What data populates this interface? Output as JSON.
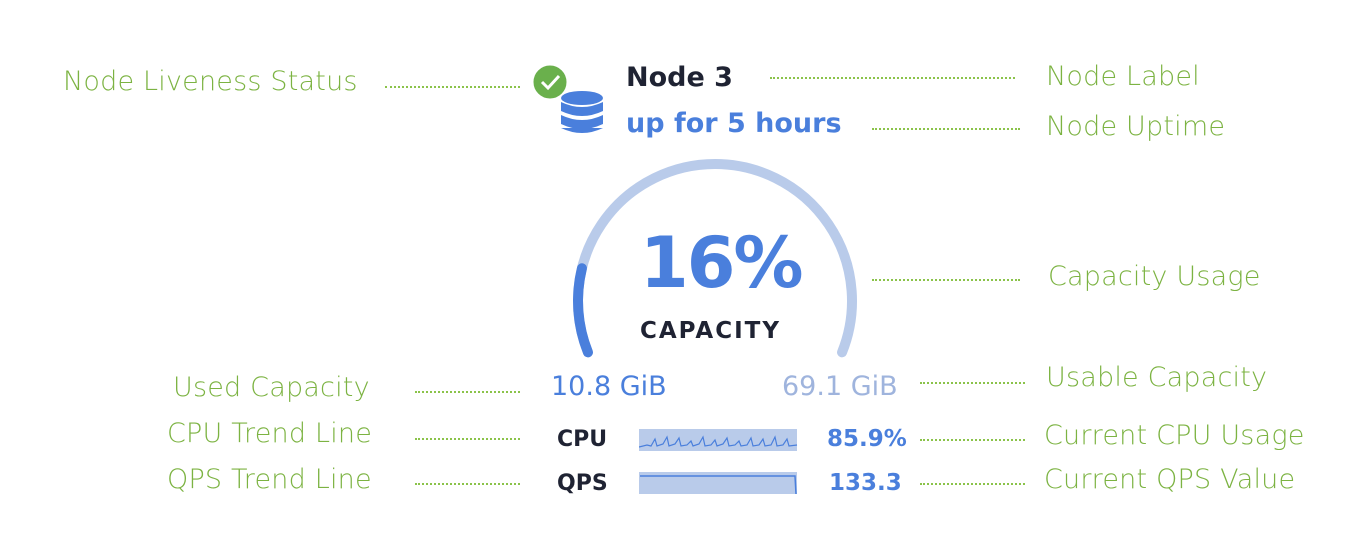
{
  "node": {
    "label": "Node 3",
    "uptime": "up for 5 hours",
    "liveness_icon": "check-circle-icon",
    "node_icon": "database-icon",
    "capacity_percent": 16,
    "capacity_percent_text": "16%",
    "capacity_label": "CAPACITY",
    "used_capacity": "10.8 GiB",
    "usable_capacity": "69.1 GiB",
    "cpu_label": "CPU",
    "cpu_value": "85.9%",
    "qps_label": "QPS",
    "qps_value": "133.3"
  },
  "annotations": {
    "liveness": "Node Liveness Status",
    "label": "Node Label",
    "uptime": "Node Uptime",
    "capacity_usage": "Capacity Usage",
    "used_capacity": "Used Capacity",
    "usable_capacity": "Usable Capacity",
    "cpu_trend": "CPU Trend Line",
    "cpu_current": "Current CPU Usage",
    "qps_trend": "QPS Trend Line",
    "qps_current": "Current QPS Value"
  },
  "colors": {
    "accent": "#4a7fdc",
    "track": "#b9cbea",
    "annotation": "#7cb342",
    "status_ok": "#6ab04c",
    "text": "#1f2333"
  }
}
